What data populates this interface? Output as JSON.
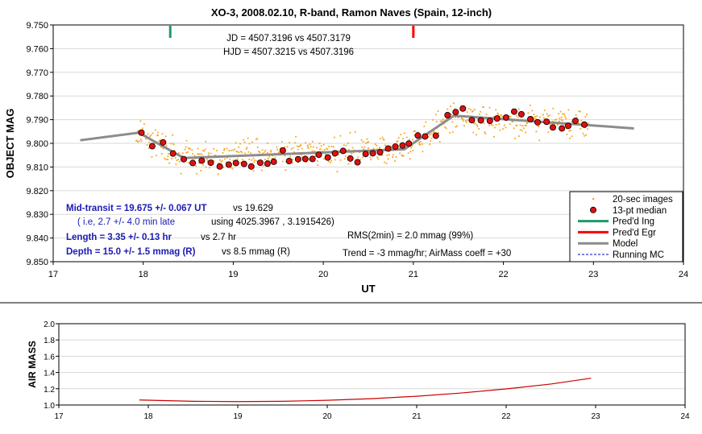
{
  "chart_data": [
    {
      "type": "scatter",
      "title": "XO-3, 2008.02.10, R-band, Ramon Naves (Spain, 12-inch)",
      "xlabel": "UT",
      "ylabel": "OBJECT MAG",
      "xlim": [
        17,
        24
      ],
      "ylim": [
        9.75,
        9.85
      ],
      "y_inverted": true,
      "x_ticks": [
        "17",
        "18",
        "19",
        "20",
        "21",
        "22",
        "23",
        "24"
      ],
      "y_ticks": [
        "9.750",
        "9.760",
        "9.770",
        "9.780",
        "9.790",
        "9.800",
        "9.810",
        "9.820",
        "9.830",
        "9.840",
        "9.850"
      ],
      "grid": "horizontal",
      "legend_position": "bottom-right",
      "legend": [
        {
          "label": "20-sec images",
          "color": "#f5a623",
          "style": "dot"
        },
        {
          "label": "13-pt median",
          "color": "#e01010",
          "style": "circle"
        },
        {
          "label": "Pred'd Ing",
          "color": "#1e9a68",
          "style": "line"
        },
        {
          "label": "Pred'd Egr",
          "color": "#ff0000",
          "style": "line"
        },
        {
          "label": "Model",
          "color": "#8c8c8c",
          "style": "thick-line"
        },
        {
          "label": "Running MC",
          "color": "#0000cc",
          "style": "dashed"
        }
      ],
      "annotations": {
        "jd": "JD = 4507.3196 vs 4507.3179",
        "hjd": "HJD = 4507.3215 vs 4507.3196",
        "mid_transit": "Mid-transit = 19.675 +/- 0.067 UT",
        "mid_transit_vs": "vs 19.629",
        "late_a": "( i.e, 2.7 +/- 4.0 min late",
        "late_b": "using 4025.3967 , 3.1915426)",
        "length": "Length = 3.35 +/- 0.13 hr",
        "length_vs": "vs 2.7 hr",
        "depth": "Depth = 15.0 +/- 1.5 mmag (R)",
        "depth_vs": "vs 8.5 mmag (R)",
        "rms": "RMS(2min) = 2.0 mmag (99%)",
        "trend": "Trend = -3 mmag/hr; AirMass coeff = +30"
      },
      "predicted_ingress_ut": 18.3,
      "predicted_egress_ut": 21.0,
      "model": {
        "x": [
          17.3,
          17.95,
          18.45,
          20.9,
          21.45,
          23.45
        ],
        "y": [
          9.7987,
          9.7955,
          9.8062,
          9.8025,
          9.7883,
          9.7937
        ]
      },
      "series": [
        {
          "name": "13-pt median",
          "x": [
            17.98,
            18.1,
            18.22,
            18.33,
            18.45,
            18.55,
            18.65,
            18.75,
            18.85,
            18.95,
            19.03,
            19.12,
            19.2,
            19.3,
            19.38,
            19.45,
            19.55,
            19.62,
            19.72,
            19.8,
            19.88,
            19.95,
            20.05,
            20.13,
            20.22,
            20.3,
            20.38,
            20.47,
            20.55,
            20.63,
            20.72,
            20.8,
            20.88,
            20.95,
            21.05,
            21.13,
            21.25,
            21.38,
            21.47,
            21.55,
            21.65,
            21.75,
            21.85,
            21.93,
            22.03,
            22.12,
            22.2,
            22.3,
            22.38,
            22.48,
            22.55,
            22.65,
            22.72,
            22.8,
            22.9
          ],
          "y": [
            9.7955,
            9.8012,
            9.7996,
            9.8043,
            9.8067,
            9.8083,
            9.8073,
            9.8082,
            9.8098,
            9.809,
            9.8083,
            9.8087,
            9.8098,
            9.8082,
            9.8086,
            9.8078,
            9.803,
            9.8075,
            9.8067,
            9.8066,
            9.8066,
            9.8048,
            9.806,
            9.8042,
            9.8032,
            9.8064,
            9.808,
            9.8045,
            9.8042,
            9.8038,
            9.8022,
            9.8014,
            9.8009,
            9.8001,
            9.7967,
            9.7971,
            9.7968,
            9.7881,
            9.7868,
            9.7853,
            9.7902,
            9.7903,
            9.7905,
            9.7895,
            9.7891,
            9.7866,
            9.7877,
            9.7898,
            9.7911,
            9.7909,
            9.7933,
            9.7937,
            9.7926,
            9.7905,
            9.7921
          ]
        }
      ]
    },
    {
      "type": "line",
      "xlabel": "",
      "ylabel": "AIR MASS",
      "xlim": [
        17,
        24
      ],
      "ylim": [
        1.0,
        2.0
      ],
      "x_ticks": [
        "17",
        "18",
        "19",
        "20",
        "21",
        "22",
        "23",
        "24"
      ],
      "y_ticks": [
        "1.0",
        "1.2",
        "1.4",
        "1.6",
        "1.8",
        "2.0"
      ],
      "grid": "horizontal",
      "series": [
        {
          "name": "",
          "color": "#cc0000",
          "x": [
            17.9,
            18.5,
            19.0,
            19.5,
            20.0,
            20.5,
            21.0,
            21.5,
            22.0,
            22.5,
            22.95
          ],
          "y": [
            1.062,
            1.046,
            1.042,
            1.046,
            1.058,
            1.078,
            1.108,
            1.148,
            1.198,
            1.258,
            1.33
          ]
        }
      ]
    }
  ]
}
